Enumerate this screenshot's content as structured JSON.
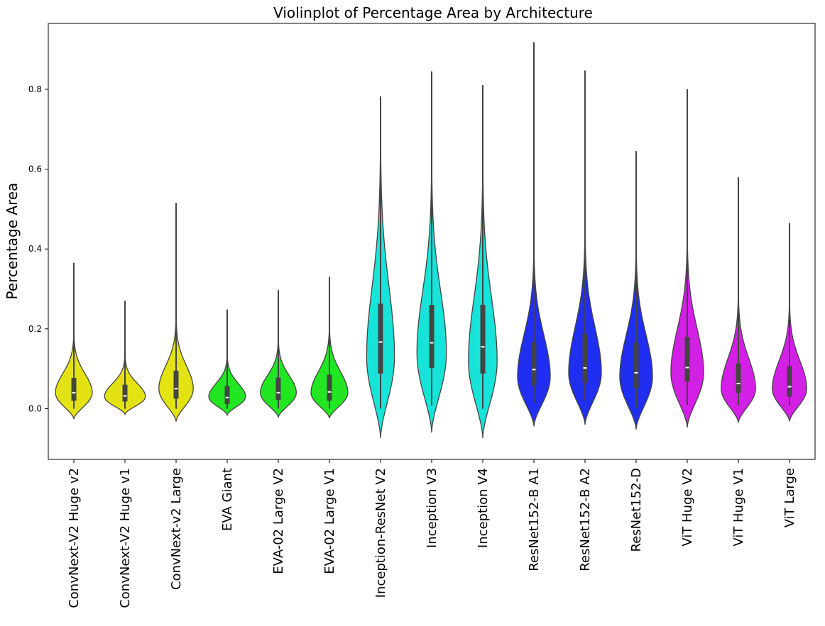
{
  "chart_data": {
    "type": "violin",
    "title": "Violinplot of Percentage Area by Architecture",
    "xlabel": "",
    "ylabel": "Percentage Area",
    "ylim": [
      -0.127,
      0.965
    ],
    "yticks": [
      0.0,
      0.2,
      0.4,
      0.6,
      0.8
    ],
    "ytick_labels": [
      "0.0",
      "0.2",
      "0.4",
      "0.6",
      "0.8"
    ],
    "grid": false,
    "categories": [
      "ConvNext-V2 Huge v2",
      "ConvNext-V2 Huge v1",
      "ConvNext-v2 Large",
      "EVA Giant",
      "EVA-02 Large V2",
      "EVA-02 Large V1",
      "Inception-ResNet V2",
      "Inception V3",
      "Inception V4",
      "ResNet152-B A1",
      "ResNet152-B A2",
      "ResNet152-D",
      "ViT Huge V2",
      "ViT Huge V1",
      "ViT Large"
    ],
    "colors": [
      "#e3e314",
      "#e3e314",
      "#e3e314",
      "#22e622",
      "#22e622",
      "#22e622",
      "#17e3d8",
      "#17e3d8",
      "#17e3d8",
      "#1f2ef0",
      "#1f2ef0",
      "#1f2ef0",
      "#d41fe6",
      "#d41fe6",
      "#d41fe6"
    ],
    "series": [
      {
        "name": "ConvNext-V2 Huge v2",
        "min": 0.0,
        "q1": 0.02,
        "median": 0.04,
        "q3": 0.077,
        "whisker_low": 0.0,
        "whisker_high": 0.14,
        "max": 0.365,
        "violin_low": -0.026,
        "violin_high": 0.365,
        "mode": 0.04,
        "max_halfwidth": 0.045
      },
      {
        "name": "ConvNext-V2 Huge v1",
        "min": 0.0,
        "q1": 0.018,
        "median": 0.032,
        "q3": 0.06,
        "whisker_low": 0.0,
        "whisker_high": 0.1,
        "max": 0.27,
        "violin_low": -0.014,
        "violin_high": 0.27,
        "mode": 0.03,
        "max_halfwidth": 0.05
      },
      {
        "name": "ConvNext-v2 Large",
        "min": 0.0,
        "q1": 0.025,
        "median": 0.05,
        "q3": 0.095,
        "whisker_low": 0.0,
        "whisker_high": 0.17,
        "max": 0.515,
        "violin_low": -0.032,
        "violin_high": 0.515,
        "mode": 0.05,
        "max_halfwidth": 0.042
      },
      {
        "name": "EVA Giant",
        "min": 0.0,
        "q1": 0.012,
        "median": 0.028,
        "q3": 0.057,
        "whisker_low": 0.0,
        "whisker_high": 0.1,
        "max": 0.248,
        "violin_low": -0.016,
        "violin_high": 0.248,
        "mode": 0.03,
        "max_halfwidth": 0.045
      },
      {
        "name": "EVA-02 Large V2",
        "min": 0.0,
        "q1": 0.022,
        "median": 0.04,
        "q3": 0.078,
        "whisker_low": 0.0,
        "whisker_high": 0.13,
        "max": 0.297,
        "violin_low": -0.022,
        "violin_high": 0.297,
        "mode": 0.04,
        "max_halfwidth": 0.044
      },
      {
        "name": "EVA-02 Large V1",
        "min": 0.0,
        "q1": 0.02,
        "median": 0.042,
        "q3": 0.085,
        "whisker_low": 0.0,
        "whisker_high": 0.15,
        "max": 0.33,
        "violin_low": -0.024,
        "violin_high": 0.33,
        "mode": 0.04,
        "max_halfwidth": 0.045
      },
      {
        "name": "Inception-ResNet V2",
        "min": 0.0,
        "q1": 0.088,
        "median": 0.167,
        "q3": 0.263,
        "whisker_low": 0.0,
        "whisker_high": 0.5,
        "max": 0.782,
        "violin_low": -0.074,
        "violin_high": 0.782,
        "mode": 0.13,
        "max_halfwidth": 0.034
      },
      {
        "name": "Inception V3",
        "min": 0.008,
        "q1": 0.102,
        "median": 0.165,
        "q3": 0.26,
        "whisker_low": 0.008,
        "whisker_high": 0.465,
        "max": 0.845,
        "violin_low": -0.06,
        "violin_high": 0.845,
        "mode": 0.14,
        "max_halfwidth": 0.036
      },
      {
        "name": "Inception V4",
        "min": 0.0,
        "q1": 0.088,
        "median": 0.155,
        "q3": 0.26,
        "whisker_low": 0.0,
        "whisker_high": 0.455,
        "max": 0.81,
        "violin_low": -0.074,
        "violin_high": 0.81,
        "mode": 0.12,
        "max_halfwidth": 0.035
      },
      {
        "name": "ResNet152-B A1",
        "min": 0.015,
        "q1": 0.058,
        "median": 0.098,
        "q3": 0.167,
        "whisker_low": 0.015,
        "whisker_high": 0.3,
        "max": 0.918,
        "violin_low": -0.044,
        "violin_high": 0.918,
        "mode": 0.08,
        "max_halfwidth": 0.04
      },
      {
        "name": "ResNet152-B A2",
        "min": 0.02,
        "q1": 0.065,
        "median": 0.102,
        "q3": 0.187,
        "whisker_low": 0.02,
        "whisker_high": 0.33,
        "max": 0.847,
        "violin_low": -0.04,
        "violin_high": 0.847,
        "mode": 0.09,
        "max_halfwidth": 0.04
      },
      {
        "name": "ResNet152-D",
        "min": 0.0,
        "q1": 0.052,
        "median": 0.09,
        "q3": 0.165,
        "whisker_low": 0.0,
        "whisker_high": 0.3,
        "max": 0.645,
        "violin_low": -0.052,
        "violin_high": 0.645,
        "mode": 0.08,
        "max_halfwidth": 0.04
      },
      {
        "name": "ViT Huge V2",
        "min": 0.01,
        "q1": 0.067,
        "median": 0.103,
        "q3": 0.18,
        "whisker_low": 0.01,
        "whisker_high": 0.32,
        "max": 0.8,
        "violin_low": -0.047,
        "violin_high": 0.8,
        "mode": 0.09,
        "max_halfwidth": 0.04
      },
      {
        "name": "ViT Huge V1",
        "min": 0.008,
        "q1": 0.04,
        "median": 0.063,
        "q3": 0.113,
        "whisker_low": 0.008,
        "whisker_high": 0.21,
        "max": 0.58,
        "violin_low": -0.035,
        "violin_high": 0.58,
        "mode": 0.05,
        "max_halfwidth": 0.042
      },
      {
        "name": "ViT Large",
        "min": 0.008,
        "q1": 0.03,
        "median": 0.055,
        "q3": 0.107,
        "whisker_low": 0.008,
        "whisker_high": 0.197,
        "max": 0.465,
        "violin_low": -0.032,
        "violin_high": 0.465,
        "mode": 0.05,
        "max_halfwidth": 0.042
      }
    ]
  }
}
